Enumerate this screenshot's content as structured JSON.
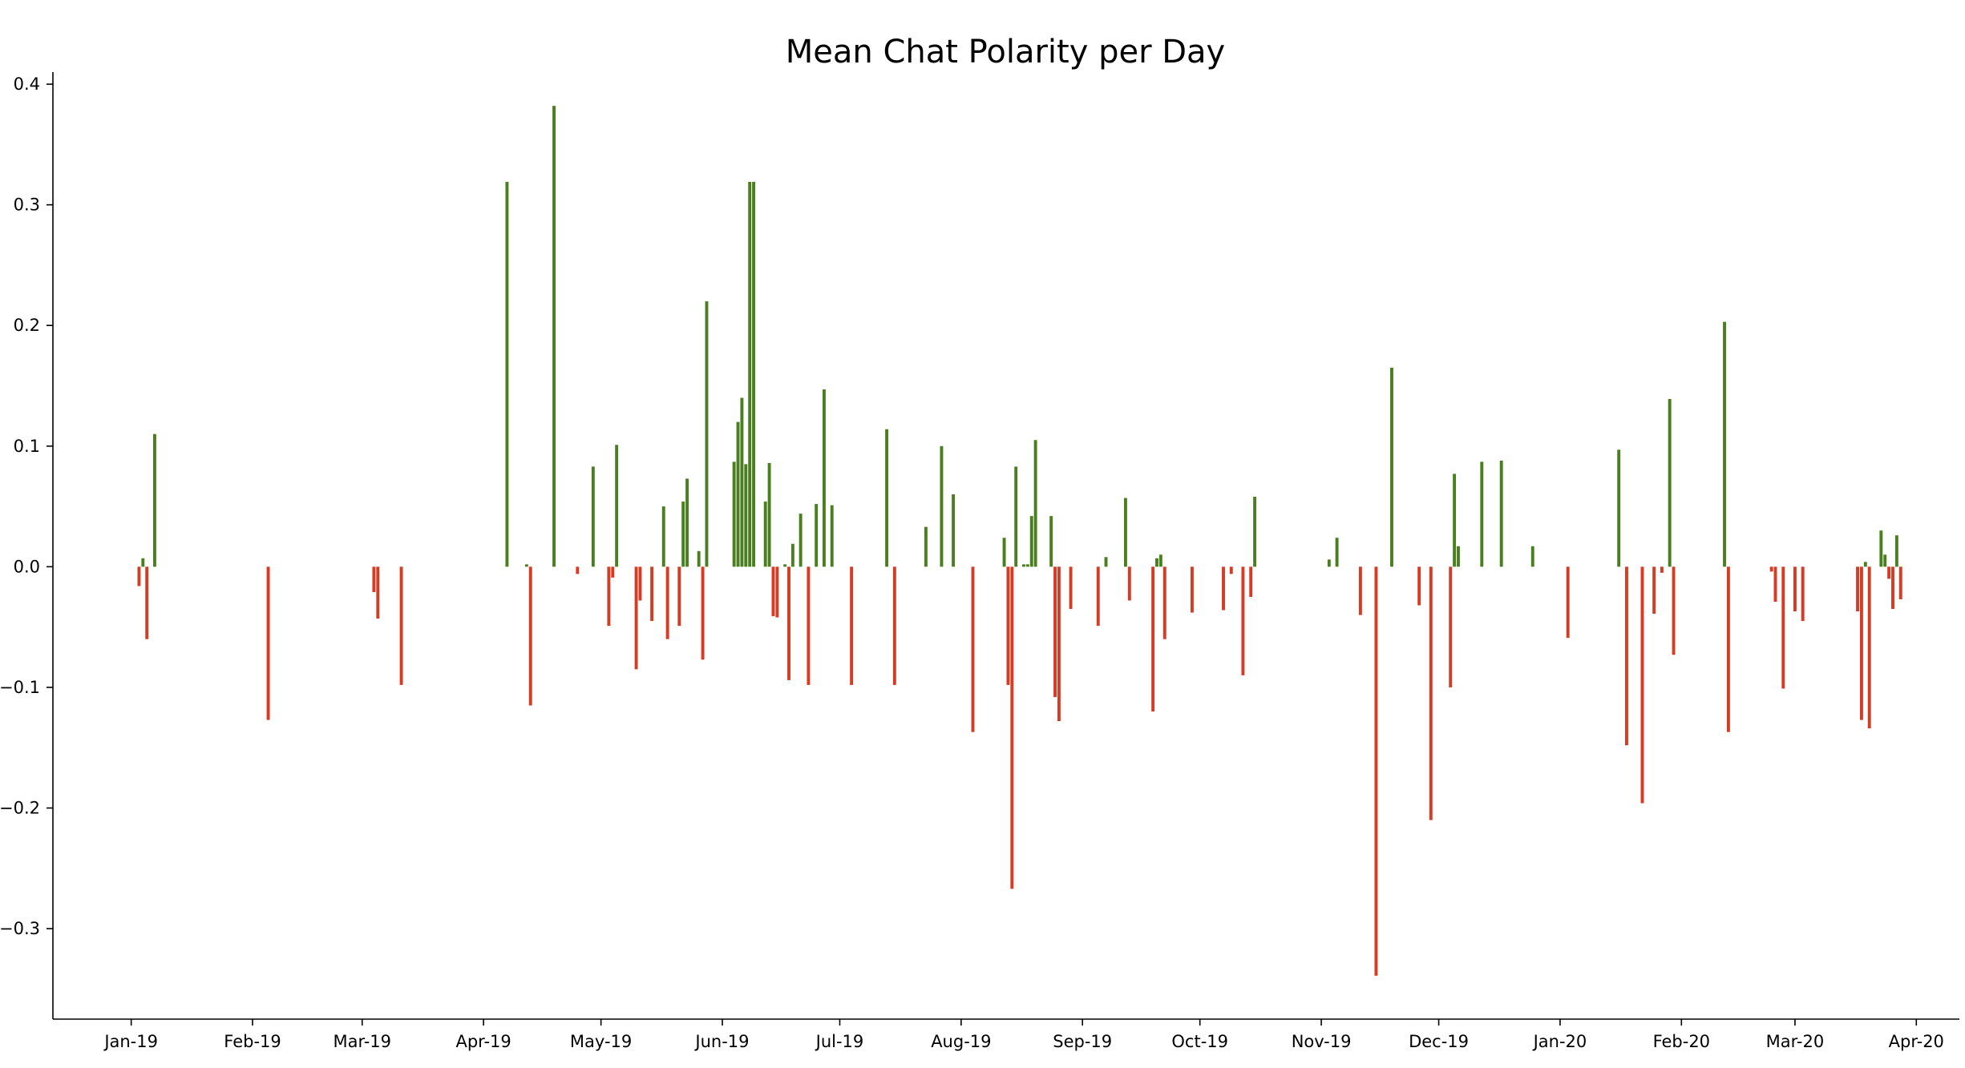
{
  "chart_data": {
    "type": "bar",
    "title": "Mean Chat Polarity per Day",
    "xlabel": "",
    "ylabel": "",
    "x_axis": "date",
    "x_tick_labels": [
      {
        "date": "2019-01-01",
        "label": "Jan-19"
      },
      {
        "date": "2019-02-01",
        "label": "Feb-19"
      },
      {
        "date": "2019-03-01",
        "label": "Mar-19"
      },
      {
        "date": "2019-04-01",
        "label": "Apr-19"
      },
      {
        "date": "2019-05-01",
        "label": "May-19"
      },
      {
        "date": "2019-06-01",
        "label": "Jun-19"
      },
      {
        "date": "2019-07-01",
        "label": "Jul-19"
      },
      {
        "date": "2019-08-01",
        "label": "Aug-19"
      },
      {
        "date": "2019-09-01",
        "label": "Sep-19"
      },
      {
        "date": "2019-10-01",
        "label": "Oct-19"
      },
      {
        "date": "2019-11-01",
        "label": "Nov-19"
      },
      {
        "date": "2019-12-01",
        "label": "Dec-19"
      },
      {
        "date": "2020-01-01",
        "label": "Jan-20"
      },
      {
        "date": "2020-02-01",
        "label": "Feb-20"
      },
      {
        "date": "2020-03-01",
        "label": "Mar-20"
      },
      {
        "date": "2020-04-01",
        "label": "Apr-20"
      }
    ],
    "y_ticks": [
      {
        "value": 0.4,
        "label": "0.4"
      },
      {
        "value": 0.3,
        "label": "0.3"
      },
      {
        "value": 0.2,
        "label": "0.2"
      },
      {
        "value": 0.1,
        "label": "0.1"
      },
      {
        "value": 0.0,
        "label": "0.0"
      },
      {
        "value": -0.1,
        "label": "−0.1"
      },
      {
        "value": -0.2,
        "label": "−0.2"
      },
      {
        "value": -0.3,
        "label": "−0.3"
      }
    ],
    "xlim": [
      "2018-12-12",
      "2020-04-12"
    ],
    "ylim": [
      -0.375,
      0.41
    ],
    "grid": false,
    "positive_color": "#4a7f1f",
    "negative_color": "#d63b24",
    "points": [
      {
        "x": "2019-01-03",
        "y": -0.016
      },
      {
        "x": "2019-01-04",
        "y": 0.007
      },
      {
        "x": "2019-01-05",
        "y": -0.06
      },
      {
        "x": "2019-01-07",
        "y": 0.11
      },
      {
        "x": "2019-02-05",
        "y": -0.127
      },
      {
        "x": "2019-03-04",
        "y": -0.021
      },
      {
        "x": "2019-03-05",
        "y": -0.043
      },
      {
        "x": "2019-03-11",
        "y": -0.098
      },
      {
        "x": "2019-04-07",
        "y": 0.319
      },
      {
        "x": "2019-04-12",
        "y": 0.002
      },
      {
        "x": "2019-04-13",
        "y": -0.115
      },
      {
        "x": "2019-04-19",
        "y": 0.382
      },
      {
        "x": "2019-04-25",
        "y": -0.006
      },
      {
        "x": "2019-04-29",
        "y": 0.083
      },
      {
        "x": "2019-05-03",
        "y": -0.049
      },
      {
        "x": "2019-05-04",
        "y": -0.009
      },
      {
        "x": "2019-05-05",
        "y": 0.101
      },
      {
        "x": "2019-05-10",
        "y": -0.085
      },
      {
        "x": "2019-05-11",
        "y": -0.028
      },
      {
        "x": "2019-05-14",
        "y": -0.045
      },
      {
        "x": "2019-05-17",
        "y": 0.05
      },
      {
        "x": "2019-05-18",
        "y": -0.06
      },
      {
        "x": "2019-05-21",
        "y": -0.049
      },
      {
        "x": "2019-05-22",
        "y": 0.054
      },
      {
        "x": "2019-05-23",
        "y": 0.073
      },
      {
        "x": "2019-05-26",
        "y": 0.013
      },
      {
        "x": "2019-05-27",
        "y": -0.077
      },
      {
        "x": "2019-05-28",
        "y": 0.22
      },
      {
        "x": "2019-06-04",
        "y": 0.087
      },
      {
        "x": "2019-06-05",
        "y": 0.12
      },
      {
        "x": "2019-06-06",
        "y": 0.14
      },
      {
        "x": "2019-06-07",
        "y": 0.085
      },
      {
        "x": "2019-06-08",
        "y": 0.319
      },
      {
        "x": "2019-06-09",
        "y": 0.319
      },
      {
        "x": "2019-06-12",
        "y": 0.054
      },
      {
        "x": "2019-06-13",
        "y": 0.086
      },
      {
        "x": "2019-06-14",
        "y": -0.041
      },
      {
        "x": "2019-06-15",
        "y": -0.042
      },
      {
        "x": "2019-06-17",
        "y": 0.002
      },
      {
        "x": "2019-06-18",
        "y": -0.094
      },
      {
        "x": "2019-06-19",
        "y": 0.019
      },
      {
        "x": "2019-06-21",
        "y": 0.044
      },
      {
        "x": "2019-06-23",
        "y": -0.098
      },
      {
        "x": "2019-06-25",
        "y": 0.052
      },
      {
        "x": "2019-06-27",
        "y": 0.147
      },
      {
        "x": "2019-06-29",
        "y": 0.051
      },
      {
        "x": "2019-07-04",
        "y": -0.098
      },
      {
        "x": "2019-07-13",
        "y": 0.114
      },
      {
        "x": "2019-07-15",
        "y": -0.098
      },
      {
        "x": "2019-07-23",
        "y": 0.033
      },
      {
        "x": "2019-07-27",
        "y": 0.1
      },
      {
        "x": "2019-07-30",
        "y": 0.06
      },
      {
        "x": "2019-08-04",
        "y": -0.137
      },
      {
        "x": "2019-08-12",
        "y": 0.024
      },
      {
        "x": "2019-08-13",
        "y": -0.098
      },
      {
        "x": "2019-08-14",
        "y": -0.267
      },
      {
        "x": "2019-08-15",
        "y": 0.083
      },
      {
        "x": "2019-08-17",
        "y": 0.002
      },
      {
        "x": "2019-08-18",
        "y": 0.002
      },
      {
        "x": "2019-08-19",
        "y": 0.042
      },
      {
        "x": "2019-08-20",
        "y": 0.105
      },
      {
        "x": "2019-08-24",
        "y": 0.042
      },
      {
        "x": "2019-08-25",
        "y": -0.108
      },
      {
        "x": "2019-08-26",
        "y": -0.128
      },
      {
        "x": "2019-08-29",
        "y": -0.035
      },
      {
        "x": "2019-09-05",
        "y": -0.049
      },
      {
        "x": "2019-09-07",
        "y": 0.008
      },
      {
        "x": "2019-09-12",
        "y": 0.057
      },
      {
        "x": "2019-09-13",
        "y": -0.028
      },
      {
        "x": "2019-09-19",
        "y": -0.12
      },
      {
        "x": "2019-09-20",
        "y": 0.007
      },
      {
        "x": "2019-09-21",
        "y": 0.01
      },
      {
        "x": "2019-09-22",
        "y": -0.06
      },
      {
        "x": "2019-09-29",
        "y": -0.038
      },
      {
        "x": "2019-10-07",
        "y": -0.036
      },
      {
        "x": "2019-10-09",
        "y": -0.006
      },
      {
        "x": "2019-10-12",
        "y": -0.09
      },
      {
        "x": "2019-10-14",
        "y": -0.025
      },
      {
        "x": "2019-10-15",
        "y": 0.058
      },
      {
        "x": "2019-11-03",
        "y": 0.006
      },
      {
        "x": "2019-11-05",
        "y": 0.024
      },
      {
        "x": "2019-11-11",
        "y": -0.04
      },
      {
        "x": "2019-11-15",
        "y": -0.339
      },
      {
        "x": "2019-11-19",
        "y": 0.165
      },
      {
        "x": "2019-11-26",
        "y": -0.032
      },
      {
        "x": "2019-11-29",
        "y": -0.21
      },
      {
        "x": "2019-12-04",
        "y": -0.1
      },
      {
        "x": "2019-12-05",
        "y": 0.077
      },
      {
        "x": "2019-12-06",
        "y": 0.017
      },
      {
        "x": "2019-12-12",
        "y": 0.087
      },
      {
        "x": "2019-12-17",
        "y": 0.088
      },
      {
        "x": "2019-12-25",
        "y": 0.017
      },
      {
        "x": "2020-01-03",
        "y": -0.059
      },
      {
        "x": "2020-01-16",
        "y": 0.097
      },
      {
        "x": "2020-01-18",
        "y": -0.148
      },
      {
        "x": "2020-01-22",
        "y": -0.196
      },
      {
        "x": "2020-01-25",
        "y": -0.039
      },
      {
        "x": "2020-01-27",
        "y": -0.005
      },
      {
        "x": "2020-01-29",
        "y": 0.139
      },
      {
        "x": "2020-01-30",
        "y": -0.073
      },
      {
        "x": "2020-02-12",
        "y": 0.203
      },
      {
        "x": "2020-02-13",
        "y": -0.137
      },
      {
        "x": "2020-02-24",
        "y": -0.004
      },
      {
        "x": "2020-02-25",
        "y": -0.029
      },
      {
        "x": "2020-02-27",
        "y": -0.101
      },
      {
        "x": "2020-03-01",
        "y": -0.037
      },
      {
        "x": "2020-03-03",
        "y": -0.045
      },
      {
        "x": "2020-03-17",
        "y": -0.037
      },
      {
        "x": "2020-03-18",
        "y": -0.127
      },
      {
        "x": "2020-03-19",
        "y": 0.004
      },
      {
        "x": "2020-03-20",
        "y": -0.134
      },
      {
        "x": "2020-03-23",
        "y": 0.03
      },
      {
        "x": "2020-03-24",
        "y": 0.01
      },
      {
        "x": "2020-03-25",
        "y": -0.01
      },
      {
        "x": "2020-03-26",
        "y": -0.035
      },
      {
        "x": "2020-03-27",
        "y": 0.026
      },
      {
        "x": "2020-03-28",
        "y": -0.027
      }
    ]
  }
}
